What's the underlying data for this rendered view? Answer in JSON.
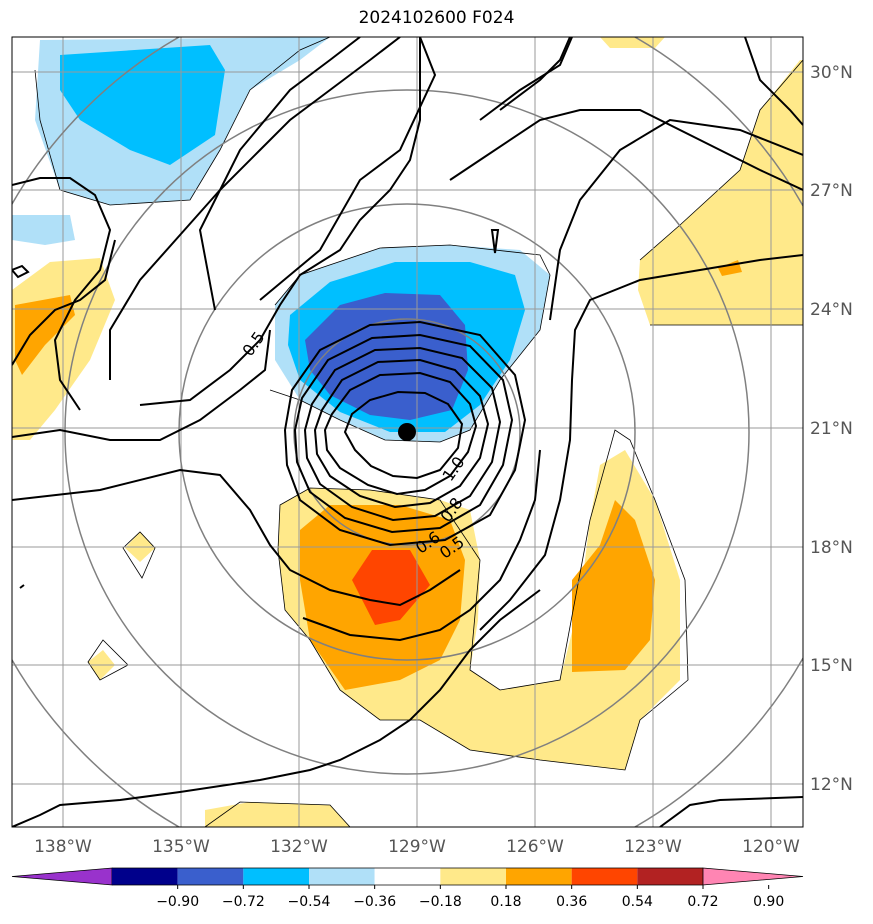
{
  "title": "2024102600 F024",
  "map": {
    "lon_labels": [
      "138°W",
      "135°W",
      "132°W",
      "129°W",
      "126°W",
      "123°W",
      "120°W"
    ],
    "lat_labels": [
      "30°N",
      "27°N",
      "24°N",
      "21°N",
      "18°N",
      "15°N",
      "12°N"
    ],
    "contour_labels": [
      "0.5",
      "1.0",
      "0.8",
      "0.6",
      "0.5"
    ],
    "storm_marker": "storm-center"
  },
  "colorbar": {
    "ticks": [
      "−0.90",
      "−0.72",
      "−0.54",
      "−0.36",
      "−0.18",
      "0.18",
      "0.36",
      "0.54",
      "0.72",
      "0.90"
    ],
    "colors": [
      "#9932cc",
      "#00008b",
      "#3a5fcd",
      "#00bfff",
      "#b0e0f8",
      "#ffffff",
      "#ffe98a",
      "#ffa500",
      "#ff4500",
      "#b22222",
      "#ff85b3"
    ]
  },
  "colors": {
    "grid": "#999999",
    "rings": "#808080",
    "contour": "#000000"
  }
}
